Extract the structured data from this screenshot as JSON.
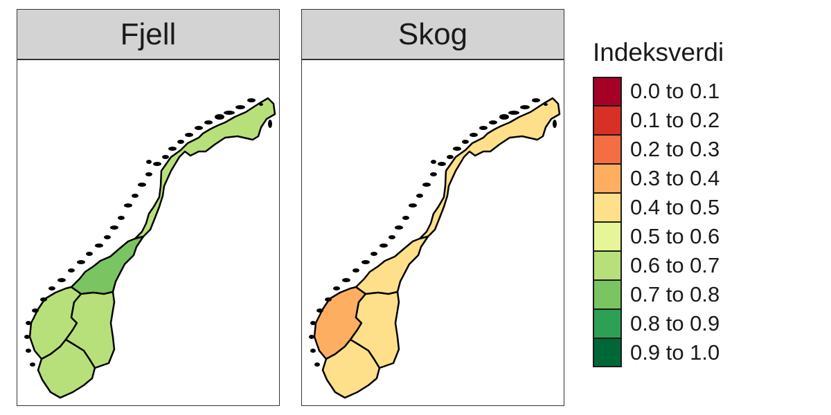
{
  "panels": [
    {
      "title": "Fjell",
      "regions": [
        {
          "id": "nord",
          "value": 0.65
        },
        {
          "id": "midt",
          "value": 0.75
        },
        {
          "id": "vest",
          "value": 0.65
        },
        {
          "id": "ost",
          "value": 0.65
        },
        {
          "id": "sor",
          "value": 0.65
        }
      ]
    },
    {
      "title": "Skog",
      "regions": [
        {
          "id": "nord",
          "value": 0.45
        },
        {
          "id": "midt",
          "value": 0.45
        },
        {
          "id": "vest",
          "value": 0.35
        },
        {
          "id": "ost",
          "value": 0.45
        },
        {
          "id": "sor",
          "value": 0.45
        }
      ]
    }
  ],
  "legend": {
    "title": "Indeksverdi",
    "items": [
      {
        "label": "0.0 to 0.1",
        "color": "#a50026"
      },
      {
        "label": "0.1 to 0.2",
        "color": "#d73027"
      },
      {
        "label": "0.2 to 0.3",
        "color": "#f46d43"
      },
      {
        "label": "0.3 to 0.4",
        "color": "#fdae61"
      },
      {
        "label": "0.4 to 0.5",
        "color": "#fee08b"
      },
      {
        "label": "0.5 to 0.6",
        "color": "#e6f598"
      },
      {
        "label": "0.6 to 0.7",
        "color": "#b8e07a"
      },
      {
        "label": "0.7 to 0.8",
        "color": "#7ac561"
      },
      {
        "label": "0.8 to 0.9",
        "color": "#2ea055"
      },
      {
        "label": "0.9 to 1.0",
        "color": "#006837"
      }
    ]
  }
}
